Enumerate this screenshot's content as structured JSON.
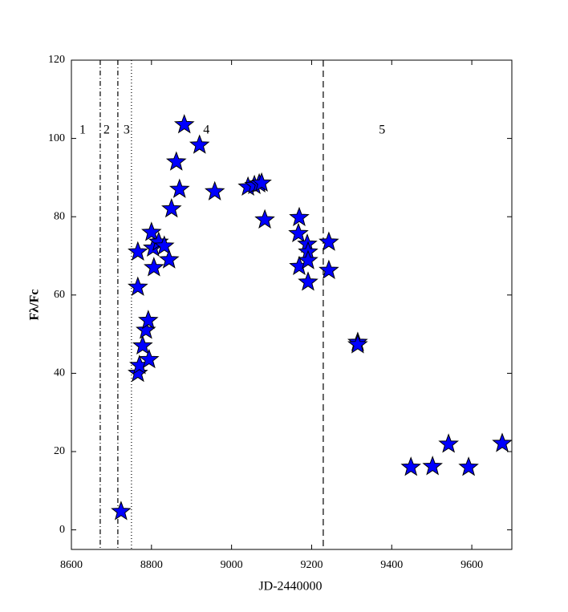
{
  "chart_data": {
    "type": "scatter",
    "x_label": "JD-2440000",
    "y_label": "Fλ/Fc",
    "xlim": [
      8600,
      9700
    ],
    "xticks": [
      8600,
      8800,
      9000,
      9200,
      9400,
      9600
    ],
    "ylim": [
      -5,
      120
    ],
    "yticks": [
      0,
      20,
      40,
      60,
      80,
      100,
      120
    ],
    "color": "#0000ff",
    "vlines": [
      {
        "x": 8672,
        "style": "dashdot"
      },
      {
        "x": 8716,
        "style": "dashdot"
      },
      {
        "x": 8750,
        "style": "dotted"
      },
      {
        "x": 9229,
        "style": "dashed"
      }
    ],
    "annotations": [
      {
        "text": "1",
        "x": 8628,
        "y": 102
      },
      {
        "text": "2",
        "x": 8688,
        "y": 102
      },
      {
        "text": "3",
        "x": 8738,
        "y": 102
      },
      {
        "text": "4",
        "x": 8937,
        "y": 102
      },
      {
        "text": "5",
        "x": 9376,
        "y": 102
      }
    ],
    "x": [
      8724,
      8766,
      8770,
      8778,
      8786,
      8792,
      8794,
      8766,
      8766,
      8800,
      8804,
      8806,
      8818,
      8832,
      8844,
      8850,
      8862,
      8870,
      8882,
      8920,
      8958,
      9041,
      9057,
      9069,
      9075,
      9083,
      9169,
      9167,
      9169,
      9189,
      9191,
      9191,
      9191,
      9243,
      9243,
      9315,
      9315,
      9448,
      9502,
      9542,
      9592,
      9676
    ],
    "values": [
      4.7,
      40,
      42,
      47,
      51,
      53.5,
      43.5,
      62,
      71,
      76,
      72,
      67,
      73.5,
      72.5,
      69,
      82,
      94,
      87,
      103.5,
      98.3,
      86.4,
      87.6,
      88,
      88.4,
      88.6,
      79.2,
      79.8,
      75.7,
      67.3,
      73,
      71,
      68.8,
      63.3,
      73.5,
      66.3,
      47.9,
      47.3,
      16,
      16.2,
      21.9,
      16,
      22.1
    ]
  }
}
